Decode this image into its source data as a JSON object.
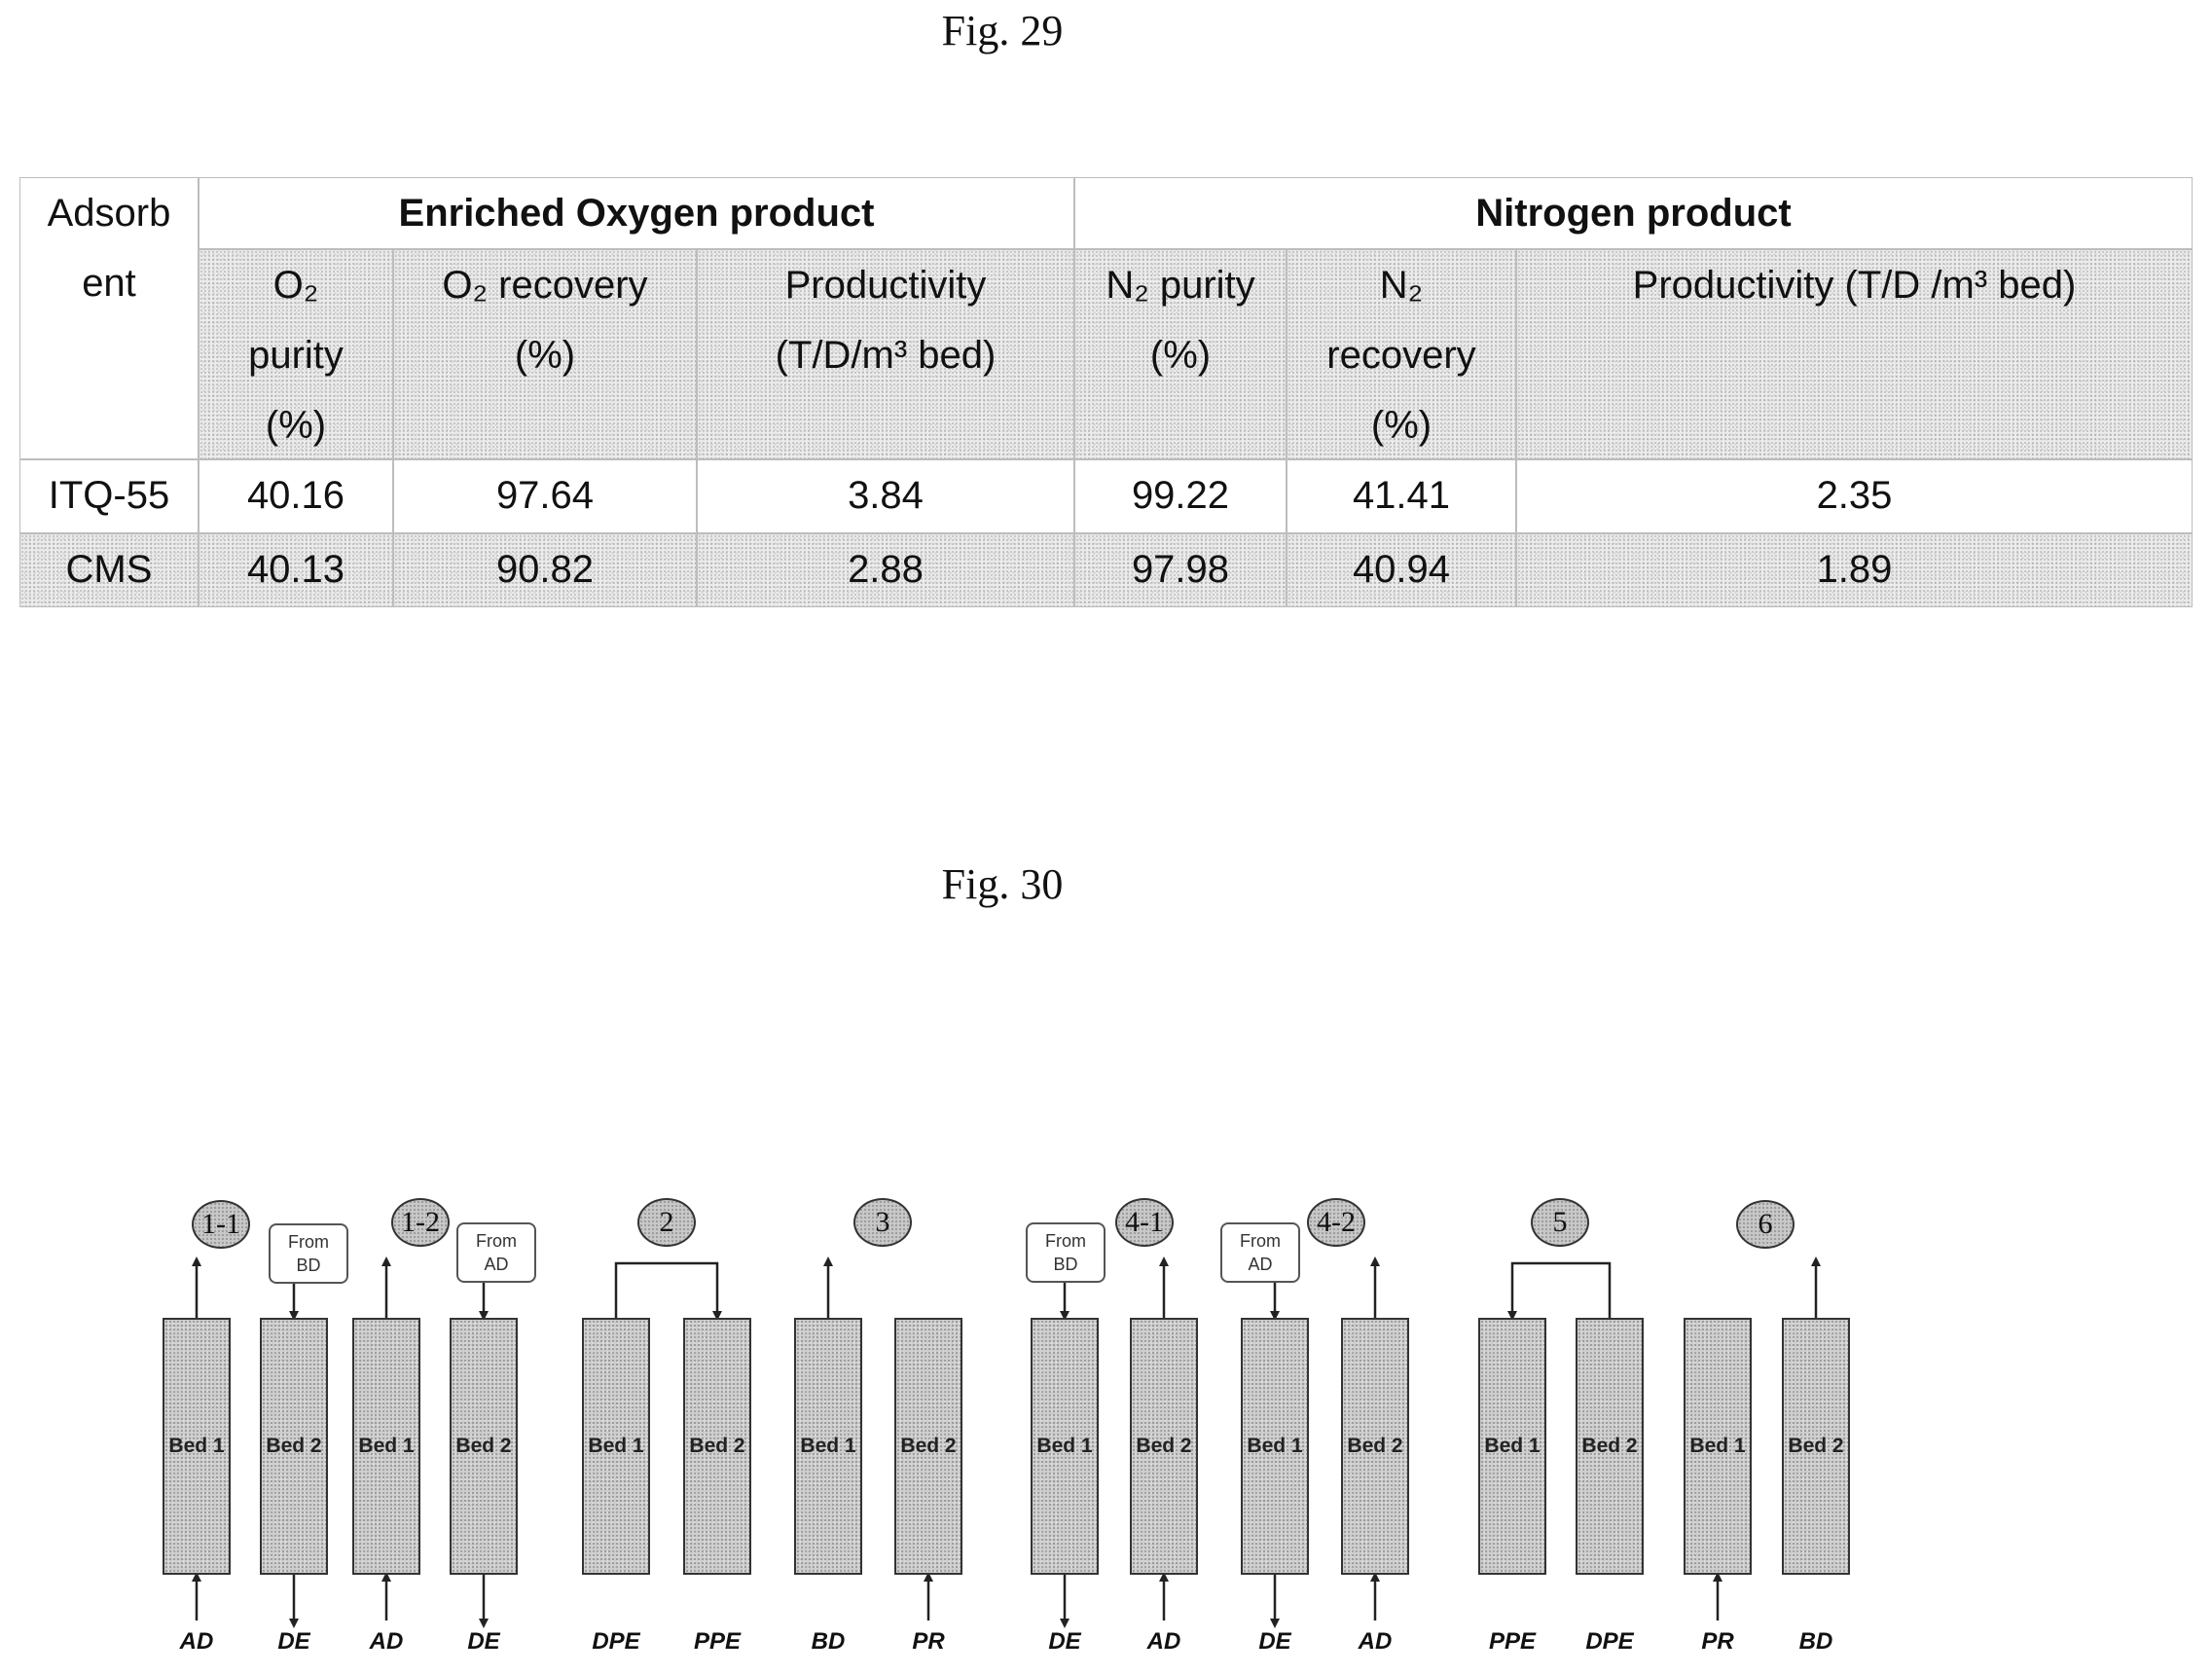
{
  "captions": {
    "fig29": "Fig. 29",
    "fig30": "Fig. 30"
  },
  "table": {
    "adsorbent_header": [
      "Adsorb",
      "ent"
    ],
    "group_o2": "Enriched Oxygen product",
    "group_n2": "Nitrogen product",
    "columns": {
      "o2_purity": [
        "O₂",
        "purity",
        "(%)"
      ],
      "o2_recovery": [
        "O₂ recovery",
        "(%)"
      ],
      "o2_productivity": [
        "Productivity",
        "(T/D/m³ bed)"
      ],
      "n2_purity": [
        "N₂ purity",
        "(%)"
      ],
      "n2_recovery": [
        "N₂",
        "recovery",
        "(%)"
      ],
      "n2_productivity": [
        "Productivity (T/D /m³ bed)"
      ]
    },
    "rows": [
      {
        "name": "ITQ-55",
        "o2_purity": "40.16",
        "o2_recovery": "97.64",
        "o2_productivity": "3.84",
        "n2_purity": "99.22",
        "n2_recovery": "41.41",
        "n2_productivity": "2.35"
      },
      {
        "name": "CMS",
        "o2_purity": "40.13",
        "o2_recovery": "90.82",
        "o2_productivity": "2.88",
        "n2_purity": "97.98",
        "n2_recovery": "40.94",
        "n2_productivity": "1.89"
      }
    ]
  },
  "diagram": {
    "steps": [
      "1-1",
      "1-2",
      "2",
      "3",
      "4-1",
      "4-2",
      "5",
      "6"
    ],
    "from_labels": [
      [
        "From",
        "BD"
      ],
      [
        "From",
        "AD"
      ],
      [
        "From",
        "BD"
      ],
      [
        "From",
        "AD"
      ]
    ],
    "beds": [
      "Bed 1",
      "Bed 2",
      "Bed 1",
      "Bed 2",
      "Bed 1",
      "Bed 2",
      "Bed 1",
      "Bed 2",
      "Bed 1",
      "Bed 2",
      "Bed 1",
      "Bed 2",
      "Bed 1",
      "Bed 2",
      "Bed 1",
      "Bed 2"
    ],
    "bed_labels": [
      "AD",
      "DE",
      "AD",
      "DE",
      "DPE",
      "PPE",
      "BD",
      "PR",
      "DE",
      "AD",
      "DE",
      "AD",
      "PPE",
      "DPE",
      "PR",
      "BD"
    ]
  }
}
